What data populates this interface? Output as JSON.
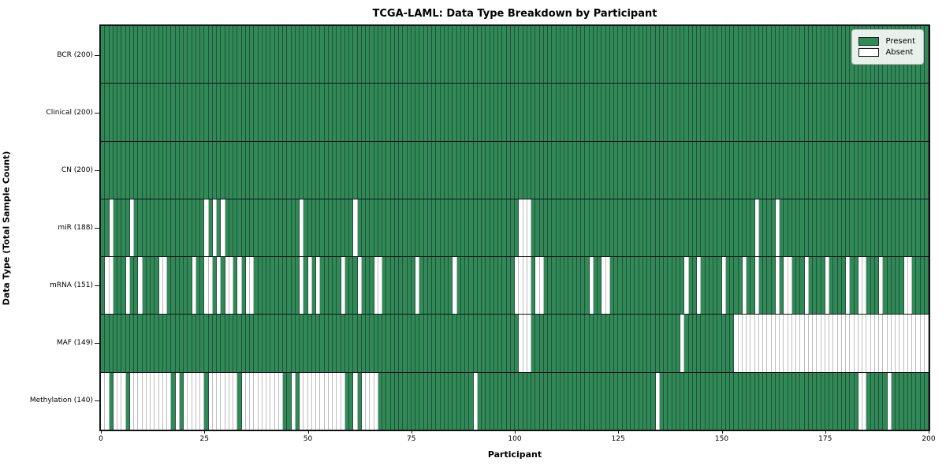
{
  "title": "TCGA-LAML: Data Type Breakdown by Participant",
  "xlabel": "Participant",
  "ylabel": "Data Type (Total Sample Count)",
  "legend": {
    "present_label": "Present",
    "absent_label": "Absent"
  },
  "colors": {
    "present": "#2e8b57",
    "absent": "#ffffff",
    "present_edge": "#2b4c3a",
    "absent_edge": "#bdbdbd",
    "spine": "#141414"
  },
  "n_participants": 200,
  "x_ticks": [
    0,
    25,
    50,
    75,
    100,
    125,
    150,
    175,
    200
  ],
  "chart_data": {
    "type": "heatmap",
    "title": "TCGA-LAML: Data Type Breakdown by Participant",
    "xlabel": "Participant",
    "ylabel": "Data Type (Total Sample Count)",
    "x_range": [
      0,
      200
    ],
    "grid": false,
    "legend_position": "upper right",
    "legend_entries": [
      "Present",
      "Absent"
    ],
    "value_encoding": {
      "present": 1,
      "absent": 0
    },
    "rows": [
      {
        "name": "bcr",
        "label": "BCR (200)",
        "total_present": 200,
        "absent_participants": []
      },
      {
        "name": "clinical",
        "label": "Clinical (200)",
        "total_present": 200,
        "absent_participants": []
      },
      {
        "name": "cn",
        "label": "CN (200)",
        "total_present": 200,
        "absent_participants": []
      },
      {
        "name": "mir",
        "label": "miR (188)",
        "total_present": 188,
        "absent_participants": [
          2,
          7,
          25,
          27,
          29,
          48,
          61,
          101,
          102,
          103,
          158,
          163
        ]
      },
      {
        "name": "mrna",
        "label": "mRNA (151)",
        "total_present": 151,
        "absent_participants": [
          1,
          2,
          6,
          9,
          14,
          15,
          22,
          25,
          26,
          28,
          30,
          31,
          33,
          35,
          36,
          48,
          50,
          52,
          58,
          62,
          66,
          67,
          76,
          85,
          100,
          101,
          102,
          103,
          105,
          106,
          118,
          121,
          122,
          141,
          144,
          150,
          155,
          158,
          163,
          165,
          166,
          170,
          175,
          180,
          183,
          184,
          188,
          194,
          195
        ]
      },
      {
        "name": "maf",
        "label": "MAF (149)",
        "total_present": 149,
        "absent_participants": [
          101,
          102,
          103,
          140,
          153,
          154,
          155,
          156,
          157,
          158,
          159,
          160,
          161,
          162,
          163,
          164,
          165,
          166,
          167,
          168,
          169,
          170,
          171,
          172,
          173,
          174,
          175,
          176,
          177,
          178,
          179,
          180,
          181,
          182,
          183,
          184,
          185,
          186,
          187,
          188,
          189,
          190,
          191,
          192,
          193,
          194,
          195,
          196,
          197,
          198,
          199
        ]
      },
      {
        "name": "methylation",
        "label": "Methylation (140)",
        "total_present": 140,
        "absent_participants": [
          0,
          1,
          3,
          4,
          5,
          7,
          8,
          9,
          10,
          11,
          12,
          13,
          14,
          15,
          16,
          18,
          20,
          21,
          22,
          23,
          24,
          26,
          27,
          28,
          29,
          30,
          31,
          32,
          34,
          35,
          36,
          37,
          38,
          39,
          40,
          41,
          42,
          43,
          46,
          48,
          49,
          50,
          51,
          52,
          53,
          54,
          55,
          56,
          57,
          58,
          61,
          63,
          64,
          65,
          66,
          90,
          134,
          183,
          184,
          190
        ]
      }
    ]
  }
}
